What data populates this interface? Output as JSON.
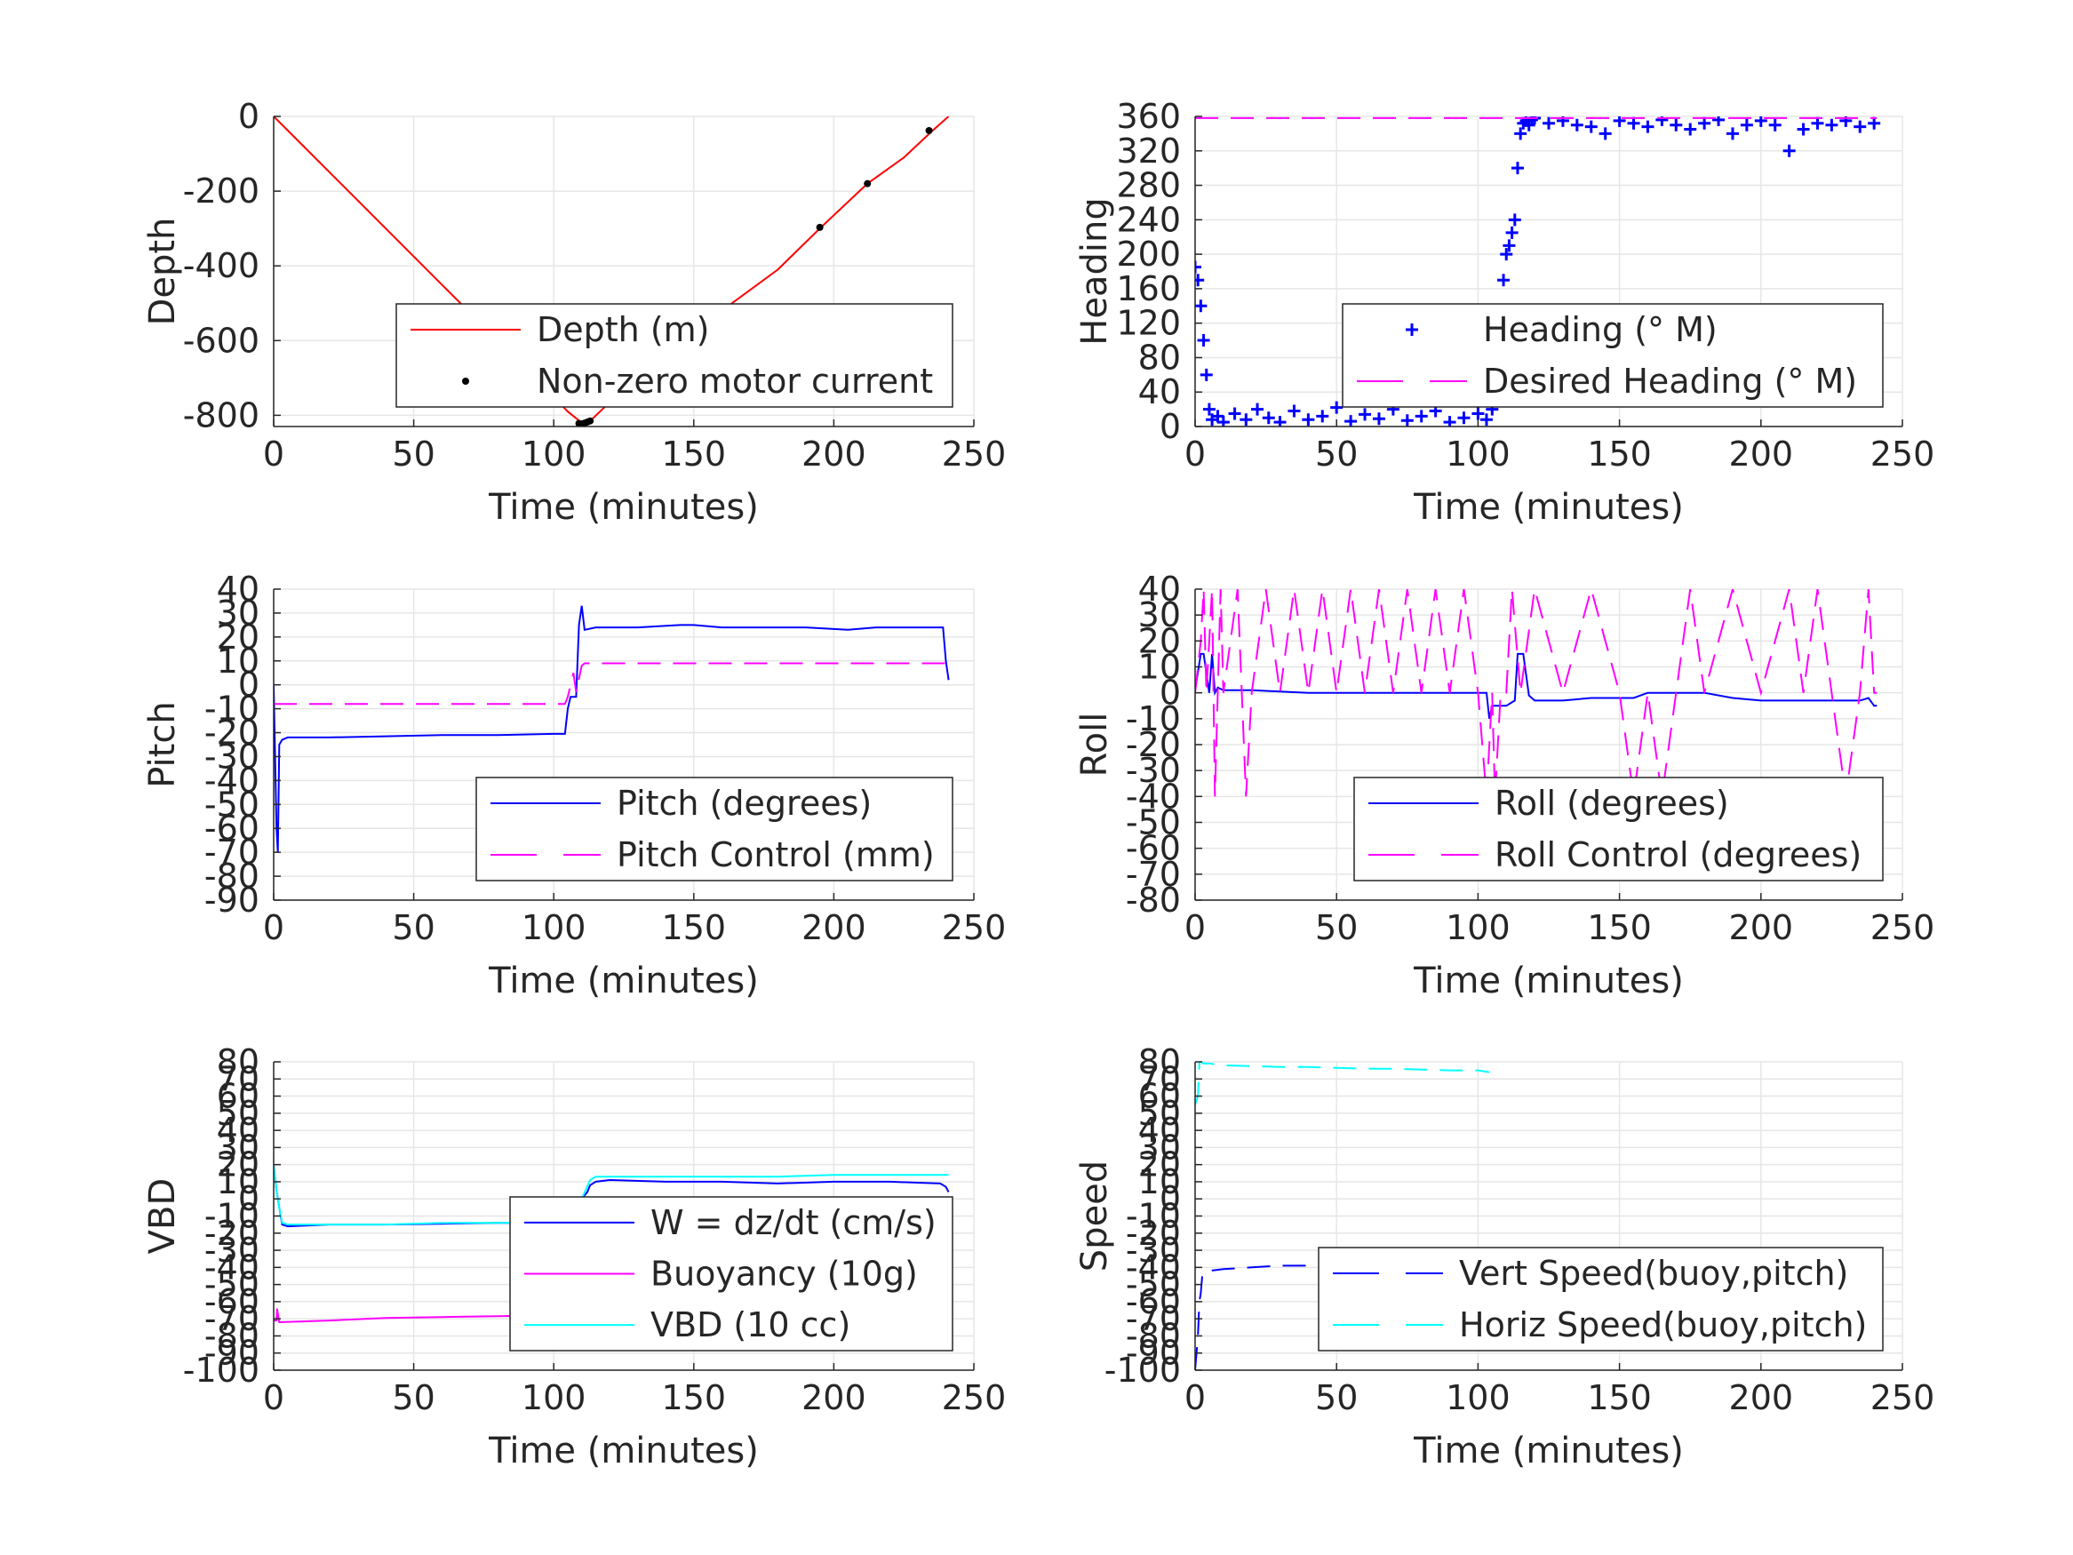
{
  "chart_data": [
    {
      "id": "depth",
      "type": "line",
      "xlabel": "Time (minutes)",
      "ylabel": "Depth",
      "xlim": [
        0,
        250
      ],
      "ylim": [
        -830,
        0
      ],
      "xticks": [
        0,
        50,
        100,
        150,
        200,
        250
      ],
      "yticks": [
        0,
        -200,
        -400,
        -600,
        -800
      ],
      "grid": true,
      "legend_position": "lower-right",
      "series": [
        {
          "name": "Depth (m)",
          "style": "solid",
          "color": "#ff0000",
          "x": [
            0,
            10,
            30,
            60,
            90,
            105,
            110,
            113,
            120,
            140,
            160,
            180,
            195,
            212,
            225,
            235,
            241
          ],
          "y": [
            0,
            -75,
            -225,
            -450,
            -675,
            -790,
            -820,
            -815,
            -765,
            -650,
            -520,
            -410,
            -300,
            -180,
            -110,
            -40,
            0
          ]
        },
        {
          "name": "Non-zero motor current",
          "style": "marker-dot",
          "color": "#000000",
          "x": [
            109,
            110,
            111,
            112,
            113,
            152,
            195,
            212,
            234
          ],
          "y": [
            -822,
            -823,
            -821,
            -818,
            -815,
            -578,
            -297,
            -180,
            -38
          ]
        }
      ]
    },
    {
      "id": "heading",
      "type": "line",
      "xlabel": "Time (minutes)",
      "ylabel": "Heading",
      "xlim": [
        0,
        250
      ],
      "ylim": [
        0,
        360
      ],
      "xticks": [
        0,
        50,
        100,
        150,
        200,
        250
      ],
      "yticks": [
        0,
        40,
        80,
        120,
        160,
        200,
        240,
        280,
        320,
        360
      ],
      "grid": true,
      "legend_position": "lower-right",
      "series": [
        {
          "name": "Heading (° M)",
          "style": "marker-plus",
          "color": "#0000ff",
          "x": [
            0,
            1,
            2,
            3,
            4,
            5,
            6,
            8,
            10,
            14,
            18,
            22,
            26,
            30,
            35,
            40,
            45,
            50,
            55,
            60,
            65,
            70,
            75,
            80,
            85,
            90,
            95,
            100,
            103,
            105,
            106,
            107,
            108,
            109,
            110,
            111,
            112,
            113,
            114,
            115,
            116,
            117,
            118,
            119,
            120,
            125,
            130,
            135,
            140,
            145,
            150,
            155,
            160,
            165,
            170,
            175,
            180,
            185,
            190,
            195,
            200,
            205,
            210,
            215,
            220,
            225,
            230,
            235,
            240
          ],
          "y": [
            185,
            170,
            140,
            100,
            60,
            20,
            8,
            12,
            5,
            15,
            8,
            20,
            10,
            5,
            18,
            8,
            12,
            22,
            6,
            14,
            9,
            20,
            7,
            12,
            18,
            5,
            10,
            15,
            8,
            20,
            50,
            90,
            130,
            170,
            200,
            210,
            225,
            240,
            300,
            340,
            352,
            355,
            350,
            356,
            358,
            352,
            355,
            350,
            348,
            340,
            355,
            352,
            348,
            356,
            350,
            345,
            352,
            356,
            340,
            350,
            355,
            350,
            320,
            345,
            352,
            350,
            355,
            348,
            352
          ]
        },
        {
          "name": "Desired Heading (° M)",
          "style": "dashed",
          "color": "#ff00ff",
          "x": [
            0,
            241
          ],
          "y": [
            358,
            358
          ]
        }
      ]
    },
    {
      "id": "pitch",
      "type": "line",
      "xlabel": "Time (minutes)",
      "ylabel": "Pitch",
      "xlim": [
        0,
        250
      ],
      "ylim": [
        -90,
        40
      ],
      "xticks": [
        0,
        50,
        100,
        150,
        200,
        250
      ],
      "yticks": [
        40,
        30,
        20,
        10,
        0,
        -10,
        -20,
        -30,
        -40,
        -50,
        -60,
        -70,
        -80,
        -90
      ],
      "grid": true,
      "legend_position": "lower-right",
      "series": [
        {
          "name": "Pitch (degrees)",
          "style": "solid",
          "color": "#0000ff",
          "x": [
            0,
            1,
            1.5,
            2,
            3,
            5,
            20,
            40,
            60,
            80,
            100,
            104,
            105,
            106,
            108,
            109,
            110,
            111,
            115,
            130,
            145,
            150,
            160,
            175,
            190,
            205,
            215,
            225,
            235,
            239,
            240,
            241
          ],
          "y": [
            0,
            -60,
            -70,
            -25,
            -23,
            -22,
            -22,
            -21.5,
            -21,
            -21,
            -20.5,
            -20.5,
            -10,
            -5,
            -5,
            25,
            33,
            23,
            24,
            24,
            25,
            25,
            24,
            24,
            24,
            23,
            24,
            24,
            24,
            24,
            10,
            2
          ]
        },
        {
          "name": "Pitch Control (mm)",
          "style": "dashed",
          "color": "#ff00ff",
          "x": [
            0,
            104,
            105,
            107,
            108,
            110,
            111,
            241
          ],
          "y": [
            -8,
            -8,
            -5,
            5,
            -3,
            8,
            9,
            9
          ]
        }
      ]
    },
    {
      "id": "roll",
      "type": "line",
      "xlabel": "Time (minutes)",
      "ylabel": "Roll",
      "xlim": [
        0,
        250
      ],
      "ylim": [
        -80,
        40
      ],
      "xticks": [
        0,
        50,
        100,
        150,
        200,
        250
      ],
      "yticks": [
        40,
        30,
        20,
        10,
        0,
        -10,
        -20,
        -30,
        -40,
        -50,
        -60,
        -70,
        -80
      ],
      "grid": true,
      "legend_position": "lower-right",
      "series": [
        {
          "name": "Roll (degrees)",
          "style": "solid",
          "color": "#0000ff",
          "x": [
            0,
            2,
            3,
            5,
            6,
            7,
            8,
            10,
            20,
            40,
            50,
            60,
            70,
            80,
            90,
            100,
            103,
            104,
            105,
            110,
            113,
            114,
            116,
            118,
            120,
            130,
            140,
            150,
            155,
            160,
            170,
            180,
            190,
            200,
            210,
            220,
            230,
            235,
            238,
            240,
            241
          ],
          "y": [
            1,
            15,
            15,
            0,
            15,
            0,
            2,
            1,
            1,
            0,
            0,
            0,
            0,
            0,
            0,
            0,
            0,
            -10,
            -5,
            -5,
            -3,
            15,
            15,
            -1,
            -3,
            -3,
            -2,
            -2,
            -2,
            0,
            0,
            0,
            -2,
            -3,
            -3,
            -3,
            -3,
            -3,
            -2,
            -5,
            -5
          ]
        },
        {
          "name": "Roll Control (degrees)",
          "style": "dashed",
          "color": "#ff00ff",
          "x": [
            0,
            2,
            3,
            4,
            5,
            6,
            7,
            8,
            9,
            10,
            15,
            18,
            20,
            25,
            30,
            35,
            40,
            45,
            50,
            55,
            60,
            65,
            70,
            75,
            80,
            85,
            90,
            95,
            100,
            103,
            105,
            106,
            108,
            110,
            112,
            115,
            120,
            130,
            140,
            150,
            155,
            160,
            165,
            170,
            175,
            180,
            190,
            200,
            210,
            215,
            220,
            225,
            230,
            235,
            238,
            240,
            241
          ],
          "y": [
            0,
            20,
            40,
            0,
            20,
            40,
            -40,
            0,
            40,
            0,
            40,
            -40,
            0,
            40,
            0,
            40,
            0,
            40,
            0,
            40,
            0,
            40,
            0,
            40,
            0,
            40,
            0,
            40,
            0,
            -40,
            0,
            -40,
            0,
            0,
            40,
            0,
            40,
            0,
            40,
            0,
            -40,
            0,
            -40,
            0,
            40,
            0,
            40,
            0,
            40,
            0,
            40,
            0,
            -40,
            0,
            40,
            0,
            0
          ]
        }
      ]
    },
    {
      "id": "vbd",
      "type": "line",
      "xlabel": "Time (minutes)",
      "ylabel": "VBD",
      "xlim": [
        0,
        250
      ],
      "ylim": [
        -100,
        80
      ],
      "xticks": [
        0,
        50,
        100,
        150,
        200,
        250
      ],
      "yticks": [
        80,
        70,
        60,
        50,
        40,
        30,
        20,
        10,
        0,
        -10,
        -20,
        -30,
        -40,
        -50,
        -60,
        -70,
        -80,
        -90,
        -100
      ],
      "ytick_labels": [
        "80",
        "70",
        "60",
        "50",
        "40",
        "30",
        "20",
        "10",
        "0",
        "-10",
        "-20",
        "-30",
        "-40",
        "-50",
        "-60",
        "-70",
        "-80",
        "-90",
        "-100"
      ],
      "grid": true,
      "legend_position": "lower-right",
      "series": [
        {
          "name": "W = dz/dt (cm/s)",
          "style": "solid",
          "color": "#0000ff",
          "x": [
            0,
            1,
            2,
            3,
            5,
            20,
            40,
            60,
            80,
            100,
            104,
            106,
            108,
            110,
            112,
            113,
            115,
            120,
            140,
            160,
            180,
            200,
            220,
            238,
            240,
            241
          ],
          "y": [
            20,
            5,
            -5,
            -15,
            -16,
            -15,
            -15,
            -14.5,
            -14,
            -14,
            -13,
            -9,
            -7,
            0,
            4,
            8,
            10,
            11,
            10,
            10,
            9,
            10,
            10,
            9,
            7,
            4
          ]
        },
        {
          "name": "Buoyancy (10g)",
          "style": "solid",
          "color": "#ff00ff",
          "x": [
            0,
            1,
            1.2,
            2,
            20,
            40,
            60,
            80,
            104
          ],
          "y": [
            -71,
            -71,
            -64,
            -72,
            -71,
            -69.5,
            -69,
            -68.5,
            -68
          ]
        },
        {
          "name": "VBD (10 cc)",
          "style": "solid",
          "color": "#00ffff",
          "x": [
            0,
            1,
            2,
            3,
            5,
            20,
            40,
            60,
            80,
            100,
            104,
            106,
            110,
            113,
            115,
            140,
            160,
            180,
            200,
            220,
            238,
            240,
            241
          ],
          "y": [
            20,
            5,
            -5,
            -14,
            -15,
            -15,
            -15,
            -14,
            -14,
            -13.5,
            -13,
            -8,
            0,
            11,
            13,
            13,
            13,
            13,
            14,
            14,
            14,
            14,
            14
          ]
        }
      ]
    },
    {
      "id": "speed",
      "type": "line",
      "xlabel": "Time (minutes)",
      "ylabel": "Speed",
      "xlim": [
        0,
        250
      ],
      "ylim": [
        -100,
        80
      ],
      "xticks": [
        0,
        50,
        100,
        150,
        200,
        250
      ],
      "yticks": [
        80,
        70,
        60,
        50,
        40,
        30,
        20,
        10,
        0,
        -10,
        -20,
        -30,
        -40,
        -50,
        -60,
        -70,
        -80,
        -90,
        -100
      ],
      "ytick_labels": [
        "80",
        "70",
        "60",
        "50",
        "40",
        "30",
        "20",
        "10",
        "0",
        "-10",
        "-20",
        "-30",
        "-40",
        "-50",
        "-60",
        "-70",
        "-80",
        "-90",
        "-100"
      ],
      "grid": true,
      "legend_position": "lower-right",
      "series": [
        {
          "name": "Vert Speed(buoy,pitch)",
          "style": "dashed",
          "color": "#0000ff",
          "x": [
            0,
            1,
            1.5,
            2,
            2.5,
            3,
            5,
            10,
            20,
            30,
            40,
            50,
            60,
            70,
            80,
            90,
            100,
            104
          ],
          "y": [
            -100,
            -80,
            -60,
            -55,
            -45,
            -43,
            -42,
            -41,
            -40,
            -39,
            -39,
            -38.5,
            -38,
            -38,
            -37.5,
            -37,
            -37,
            -36
          ]
        },
        {
          "name": "Horiz Speed(buoy,pitch)",
          "style": "dashed",
          "color": "#00ffff",
          "x": [
            0,
            1,
            1.5,
            2,
            3,
            5,
            10,
            20,
            30,
            40,
            50,
            60,
            70,
            80,
            90,
            100,
            104
          ],
          "y": [
            55,
            60,
            80,
            80,
            79,
            79,
            78,
            77.5,
            77,
            77,
            76.5,
            76,
            76,
            75.5,
            75,
            75,
            74
          ]
        }
      ]
    }
  ]
}
